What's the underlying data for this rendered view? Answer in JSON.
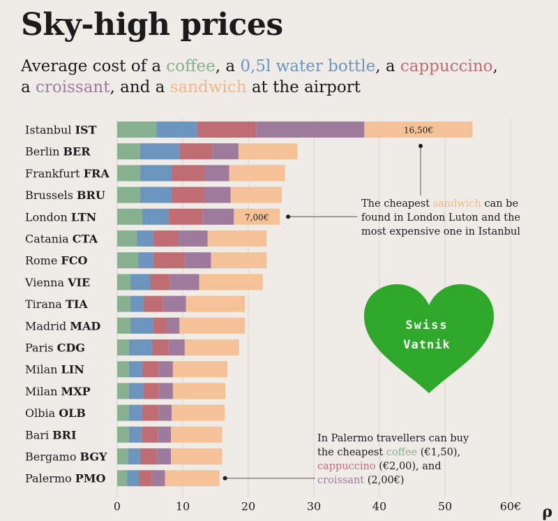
{
  "title": "Sky-high prices",
  "subtitle": {
    "p1": "Average cost of a ",
    "coffee": "coffee",
    "p2": ", a ",
    "water": "0,5l water bottle",
    "p3": ", a ",
    "cappuccino": "cappuccino",
    "p4": ",",
    "p5": "a ",
    "croissant": "croissant",
    "p6": ", and a ",
    "sandwich": "sandwich",
    "p7": " at the airport"
  },
  "colors": {
    "coffee": "#86b08f",
    "water": "#6b95bd",
    "cappuccino": "#bf6d72",
    "croissant": "#9e7b9d",
    "sandwich": "#f5c298",
    "heart": "#2ea82a",
    "background": "#efebe7"
  },
  "annotations": {
    "sandwich_note": {
      "l1a": "The cheapest ",
      "l1b": "sandwich",
      "l1c": " can be",
      "l2": "found in London Luton and the",
      "l3": "most expensive one in Istanbul"
    },
    "palermo_note": {
      "l1": "In Palermo travellers can buy",
      "l2a": "the cheapest ",
      "l2b": "coffee",
      "l2c": " (€1,50),",
      "l3a": "cappuccino",
      "l3b": " (€2,00), and",
      "l4a": "croissant",
      "l4b": " (2,00€)"
    }
  },
  "logo": {
    "line1": "Swiss",
    "line2": "Vatnik"
  },
  "corner_mark": "ρ",
  "chart_data": {
    "type": "bar",
    "orientation": "horizontal",
    "stacked": true,
    "categories": [
      {
        "city": "Istanbul",
        "code": "IST"
      },
      {
        "city": "Berlin",
        "code": "BER"
      },
      {
        "city": "Frankfurt",
        "code": "FRA"
      },
      {
        "city": "Brussels",
        "code": "BRU"
      },
      {
        "city": "London",
        "code": "LTN"
      },
      {
        "city": "Catania",
        "code": "CTA"
      },
      {
        "city": "Rome",
        "code": "FCO"
      },
      {
        "city": "Vienna",
        "code": "VIE"
      },
      {
        "city": "Tirana",
        "code": "TIA"
      },
      {
        "city": "Madrid",
        "code": "MAD"
      },
      {
        "city": "Paris",
        "code": "CDG"
      },
      {
        "city": "Milan",
        "code": "LIN"
      },
      {
        "city": "Milan",
        "code": "MXP"
      },
      {
        "city": "Olbia",
        "code": "OLB"
      },
      {
        "city": "Bari",
        "code": "BRI"
      },
      {
        "city": "Bergamo",
        "code": "BGY"
      },
      {
        "city": "Palermo",
        "code": "PMO"
      }
    ],
    "series": [
      {
        "name": "coffee",
        "values": [
          6.0,
          3.5,
          3.5,
          3.5,
          3.8,
          3.0,
          3.2,
          2.0,
          2.0,
          2.0,
          1.8,
          1.8,
          1.8,
          1.8,
          1.8,
          1.7,
          1.5
        ]
      },
      {
        "name": "0,5l water bottle",
        "values": [
          6.2,
          6.0,
          4.8,
          4.8,
          4.0,
          2.5,
          2.3,
          3.0,
          2.0,
          3.5,
          3.5,
          2.0,
          2.2,
          2.0,
          1.9,
          1.8,
          1.8
        ]
      },
      {
        "name": "cappuccino",
        "values": [
          9.0,
          5.0,
          5.0,
          5.0,
          5.2,
          3.8,
          4.8,
          3.0,
          3.0,
          2.0,
          2.5,
          2.5,
          2.3,
          2.5,
          2.5,
          2.5,
          2.0
        ]
      },
      {
        "name": "croissant",
        "values": [
          16.5,
          4.0,
          3.8,
          4.0,
          4.8,
          4.5,
          4.0,
          4.5,
          3.5,
          2.0,
          2.5,
          2.2,
          2.2,
          2.0,
          2.0,
          2.2,
          2.0
        ]
      },
      {
        "name": "sandwich",
        "values": [
          16.5,
          9.0,
          8.5,
          7.8,
          7.0,
          9.0,
          8.5,
          9.7,
          9.0,
          10.0,
          8.3,
          8.3,
          8.0,
          8.1,
          7.8,
          7.8,
          8.3
        ]
      }
    ],
    "value_labels": [
      {
        "category": "IST",
        "series": "sandwich",
        "text": "16,50€"
      },
      {
        "category": "LTN",
        "series": "sandwich",
        "text": "7,00€"
      }
    ],
    "x_ticks": [
      "0",
      "10",
      "20",
      "30",
      "40",
      "50",
      "60€"
    ],
    "xlim": [
      0,
      60
    ],
    "grid": true
  }
}
